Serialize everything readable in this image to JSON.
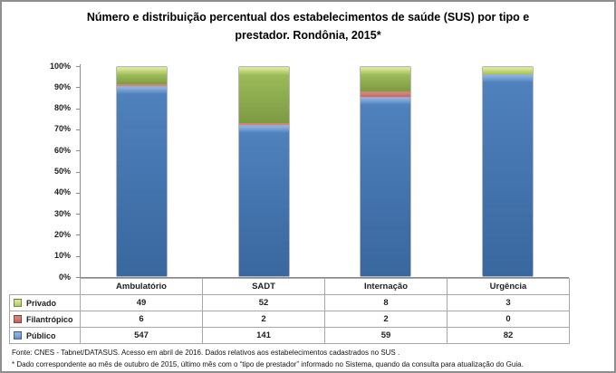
{
  "frame": {
    "background": "#ffffff",
    "border_color": "#8f8f8f"
  },
  "title": {
    "line1": "Número e distribuição percentual dos estabelecimentos de saúde (SUS) por tipo e",
    "line2": "prestador. Rondônia, 2015*"
  },
  "chart_data": {
    "type": "bar",
    "variant": "stacked-column-percent",
    "normalize": "percent_of_category_total",
    "title": "Número e distribuição percentual dos estabelecimentos de saúde (SUS) por tipo e prestador. Rondônia, 2015*",
    "categories": [
      "Ambulatório",
      "SADT",
      "Internação",
      "Urgência"
    ],
    "series": [
      {
        "key": "privado",
        "name": "Privado",
        "values": [
          49,
          52,
          8,
          3
        ],
        "fill": "#9bbb59",
        "light": "#d7e690",
        "dark": "#7d9a43"
      },
      {
        "key": "filantropico",
        "name": "Filantrópico",
        "values": [
          6,
          2,
          2,
          0
        ],
        "fill": "#c0504d",
        "light": "#d4827f",
        "dark": "#9c3d3a"
      },
      {
        "key": "publico",
        "name": "Público",
        "values": [
          547,
          141,
          59,
          82
        ],
        "fill": "#4f81bd",
        "light": "#8ab1e0",
        "dark": "#39679e"
      }
    ],
    "stack_order_bottom_to_top": [
      "Público",
      "Filantrópico",
      "Privado"
    ],
    "xlabel": "",
    "ylabel": "",
    "ylim": [
      0,
      100
    ],
    "y_ticks_bottom_to_top": [
      "0%",
      "10%",
      "20%",
      "30%",
      "40%",
      "50%",
      "60%",
      "70%",
      "80%",
      "90%",
      "100%"
    ],
    "gridlines": false,
    "legend_position": "data-table-left",
    "axis_color": "#8c8c8c",
    "table_border_color": "#a8a8a8"
  },
  "footer": {
    "source": "Fonte: CNES - Tabnet/DATASUS. Acesso em abril de 2016.  Dados relativos aos estabelecimentos cadastrados no SUS .",
    "note": "* Dado correspondente ao mês de  outubro de 2015, último mês com o “tipo de prestador” informado no Sistema, quando da consulta para atualização do Guia."
  }
}
